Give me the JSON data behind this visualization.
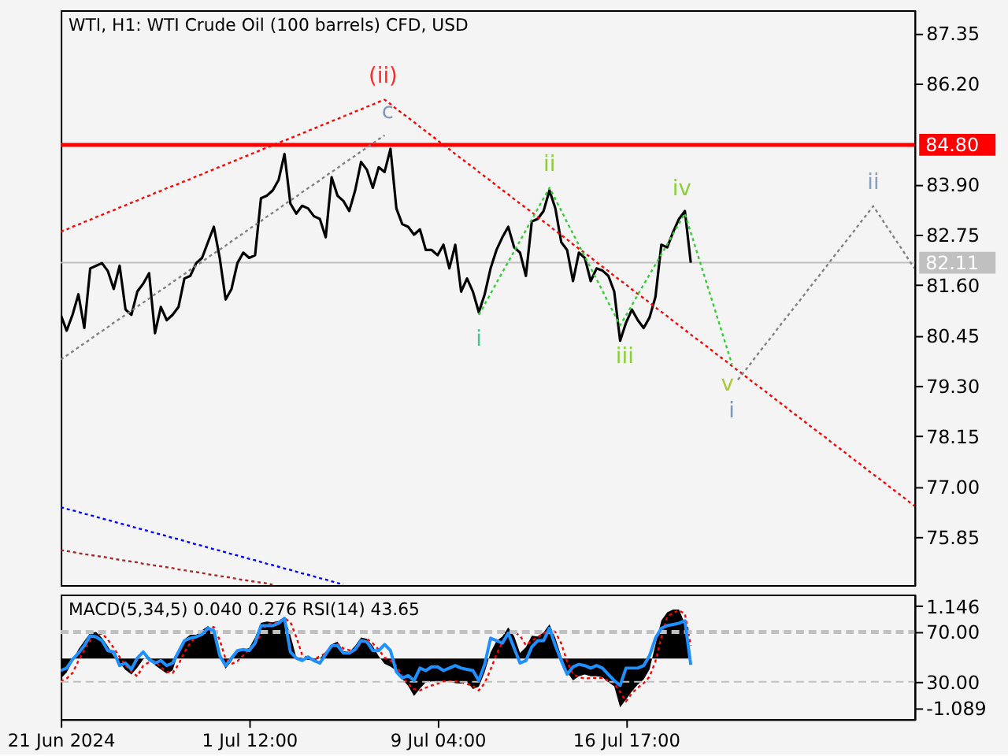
{
  "chart_data": [
    {
      "type": "line",
      "title": "WTI, H1:  WTI Crude Oil (100 barrels) CFD, USD",
      "categories": [
        null,
        null,
        null,
        null,
        null,
        null,
        null,
        null,
        null,
        null,
        null,
        null,
        null,
        null,
        null,
        null,
        null,
        null,
        null,
        null,
        null,
        null,
        null,
        null,
        null,
        null,
        null,
        null,
        null,
        null,
        null,
        null,
        null,
        null,
        null,
        null,
        null,
        null,
        null,
        null,
        null,
        null,
        null,
        null,
        null,
        null,
        null,
        null,
        null,
        null,
        null,
        null,
        null,
        null,
        null,
        null,
        null,
        null,
        null,
        null,
        null,
        null,
        null,
        null,
        null,
        null,
        null,
        null,
        null,
        null,
        null,
        null,
        null,
        null,
        null,
        null,
        null,
        null,
        null,
        null,
        null,
        null,
        null,
        null,
        null,
        null,
        null,
        null,
        null,
        null,
        null,
        null,
        null,
        null,
        null,
        null,
        null,
        null,
        null,
        null,
        null,
        null,
        null,
        null,
        null,
        null,
        null,
        null,
        null,
        null,
        null,
        null,
        null,
        null,
        null,
        null,
        null,
        null,
        null,
        null,
        null,
        null,
        null,
        null,
        null,
        null,
        null,
        null,
        null,
        null,
        null,
        null,
        null,
        null,
        null,
        null,
        null,
        null,
        null,
        null,
        null,
        null,
        null,
        null,
        null,
        null
      ],
      "ylim": [
        74.75,
        87.87
      ],
      "yticks": [
        87.35,
        {
          "value": 86.2,
          "label": "86.20"
        },
        {
          "value": 83.9,
          "label": "83.90"
        },
        82.75,
        {
          "value": 81.6,
          "label": "81.60"
        },
        80.45,
        {
          "value": 79.3,
          "label": "79.30"
        },
        78.15,
        {
          "value": 77,
          "label": "77.00"
        },
        75.85
      ],
      "series": [
        {
          "color": "#000000",
          "values": [
            80.92,
            80.56,
            80.92,
            81.39,
            80.62,
            81.98,
            82.04,
            82.1,
            81.92,
            81.51,
            82.04,
            81.04,
            80.92,
            81.45,
            81.63,
            81.87,
            80.5,
            81.1,
            80.8,
            80.92,
            81.1,
            81.75,
            81.81,
            82.1,
            82.22,
            82.58,
            82.93,
            82.22,
            81.27,
            81.51,
            82.1,
            82.34,
            82.22,
            82.28,
            83.58,
            83.64,
            83.76,
            84.0,
            84.59,
            83.46,
            83.23,
            83.41,
            83.35,
            83.17,
            83.11,
            82.69,
            84.06,
            83.64,
            83.52,
            83.29,
            83.76,
            84.41,
            84.23,
            83.82,
            84.29,
            84.18,
            84.71,
            83.35,
            82.99,
            82.93,
            82.75,
            82.87,
            82.4,
            82.4,
            82.28,
            82.52,
            81.98,
            82.52,
            81.45,
            81.75,
            81.45,
            80.98,
            81.39,
            81.98,
            82.4,
            82.69,
            82.93,
            82.46,
            82.34,
            81.81,
            83.05,
            83.11,
            83.29,
            83.76,
            83.35,
            82.58,
            82.4,
            81.69,
            82.34,
            82.22,
            81.69,
            81.98,
            81.93,
            81.81,
            81.45,
            80.33,
            80.74,
            81.04,
            80.8,
            80.62,
            80.86,
            81.33,
            82.52,
            82.46,
            82.81,
            83.11,
            83.29,
            82.11,
            null,
            null,
            null,
            null,
            null,
            null,
            null,
            null,
            null,
            null,
            null,
            null,
            null,
            null,
            null,
            null,
            null,
            null,
            null,
            null,
            null,
            null,
            null,
            null,
            null,
            null,
            null,
            null,
            null,
            null,
            null,
            null,
            null,
            null,
            null,
            null,
            null,
            null
          ]
        },
        {
          "color": "#ff0000",
          "line_style": "dotted",
          "values": [
            82.82,
            82.87,
            82.93,
            82.98,
            83.04,
            83.09,
            83.15,
            83.2,
            83.26,
            83.31,
            83.37,
            83.42,
            83.48,
            83.53,
            83.59,
            83.64,
            83.7,
            83.75,
            83.81,
            83.86,
            83.91,
            83.97,
            84.02,
            84.08,
            84.13,
            84.19,
            84.24,
            84.3,
            84.35,
            84.41,
            84.46,
            84.52,
            84.57,
            84.63,
            84.68,
            84.74,
            84.79,
            84.85,
            84.9,
            84.95,
            85.01,
            85.06,
            85.12,
            85.17,
            85.23,
            85.28,
            85.34,
            85.39,
            85.45,
            85.5,
            85.56,
            85.61,
            85.67,
            85.72,
            85.78,
            85.83,
            85.73,
            85.62,
            85.52,
            85.42,
            85.32,
            85.21,
            85.11,
            85.01,
            84.9,
            84.8,
            84.7,
            84.59,
            84.49,
            84.39,
            84.29,
            84.18,
            84.08,
            83.98,
            83.87,
            83.77,
            83.67,
            83.56,
            83.46,
            83.36,
            83.26,
            83.15,
            83.05,
            82.95,
            82.84,
            82.74,
            82.64,
            82.53,
            82.43,
            82.33,
            82.23,
            82.12,
            82.02,
            81.92,
            81.81,
            81.71,
            81.61,
            81.5,
            81.4,
            81.3,
            81.2,
            81.09,
            80.99,
            80.89,
            80.78,
            80.68,
            80.58,
            80.47,
            80.37,
            80.27,
            80.17,
            80.06,
            79.96,
            79.86,
            79.75,
            79.65,
            79.55,
            79.44,
            79.34,
            79.24,
            79.14,
            79.03,
            78.93,
            78.83,
            78.72,
            78.62,
            78.52,
            78.41,
            78.31,
            78.21,
            78.11,
            78.0,
            77.9,
            77.8,
            77.69,
            77.59,
            77.49,
            77.38,
            77.28,
            77.18,
            77.08,
            76.97,
            76.87,
            76.77,
            76.66,
            76.56
          ]
        },
        {
          "color": "#808080",
          "line_style": "dotted",
          "values": [
            79.9,
            79.99,
            80.08,
            80.18,
            80.27,
            80.36,
            80.46,
            80.55,
            80.64,
            80.74,
            80.83,
            80.92,
            81.01,
            81.11,
            81.2,
            81.29,
            81.39,
            81.48,
            81.57,
            81.67,
            81.76,
            81.85,
            81.95,
            82.04,
            82.13,
            82.23,
            82.32,
            82.41,
            82.5,
            82.6,
            82.69,
            82.78,
            82.88,
            82.97,
            83.06,
            83.16,
            83.25,
            83.34,
            83.44,
            83.53,
            83.62,
            83.72,
            83.81,
            83.9,
            83.99,
            84.09,
            84.18,
            84.27,
            84.37,
            84.46,
            84.55,
            84.65,
            84.74,
            84.83,
            84.93,
            85.02,
            null,
            null,
            null,
            null,
            null,
            null,
            null,
            null,
            null,
            null,
            null,
            null,
            null,
            null,
            null,
            null,
            null,
            null,
            null,
            null,
            null,
            null,
            null,
            null,
            null,
            null,
            null,
            null,
            null,
            null,
            null,
            null,
            null,
            null,
            null,
            null,
            null,
            null,
            null,
            null,
            null,
            null,
            null,
            null,
            null,
            null,
            null,
            null,
            null,
            null,
            null,
            null,
            null,
            null,
            null,
            null,
            null,
            null,
            null,
            null,
            null,
            null,
            null,
            null,
            null,
            null,
            null,
            null,
            null,
            null,
            null,
            null,
            null,
            null,
            null,
            null,
            null,
            null,
            null,
            null,
            null,
            null,
            null,
            null,
            null,
            null,
            null,
            null,
            null,
            null
          ]
        },
        {
          "color": "#0000ff",
          "line_style": "dotted",
          "values": [
            76.53,
            76.49,
            76.46,
            76.42,
            76.38,
            76.35,
            76.31,
            76.27,
            76.24,
            76.2,
            76.16,
            76.13,
            76.09,
            76.05,
            76.02,
            75.98,
            75.94,
            75.91,
            75.87,
            75.83,
            75.8,
            75.76,
            75.72,
            75.68,
            75.65,
            75.61,
            75.57,
            75.54,
            75.5,
            75.46,
            75.43,
            75.39,
            75.35,
            75.32,
            75.28,
            75.24,
            75.21,
            75.17,
            75.13,
            75.1,
            75.06,
            75.02,
            74.99,
            74.95,
            74.91,
            74.88,
            74.84,
            74.8,
            74.77,
            null,
            null,
            null,
            null,
            null,
            null,
            null,
            null,
            null,
            null,
            null,
            null,
            null,
            null,
            null,
            null,
            null,
            null,
            null,
            null,
            null,
            null,
            null,
            null,
            null,
            null,
            null,
            null,
            null,
            null,
            null,
            null,
            null,
            null,
            null,
            null,
            null,
            null,
            null,
            null,
            null,
            null,
            null,
            null,
            null,
            null,
            null,
            null,
            null,
            null,
            null,
            null,
            null,
            null,
            null,
            null,
            null,
            null,
            null,
            null,
            null,
            null,
            null,
            null,
            null,
            null,
            null,
            null,
            null,
            null,
            null,
            null,
            null,
            null,
            null,
            null,
            null,
            null,
            null,
            null,
            null,
            null,
            null,
            null,
            null,
            null,
            null,
            null,
            null,
            null,
            null,
            null,
            null,
            null,
            null,
            null,
            null
          ]
        },
        {
          "color": "#a52a2a",
          "line_style": "dotted",
          "values": [
            75.55,
            75.53,
            75.51,
            75.48,
            75.46,
            75.44,
            75.42,
            75.4,
            75.38,
            75.35,
            75.33,
            75.31,
            75.29,
            75.27,
            75.24,
            75.22,
            75.2,
            75.18,
            75.16,
            75.14,
            75.11,
            75.09,
            75.07,
            75.05,
            75.03,
            75.0,
            74.98,
            74.96,
            74.94,
            74.92,
            74.89,
            74.87,
            74.85,
            74.83,
            74.81,
            74.79,
            74.76,
            null,
            null,
            null,
            null,
            null,
            null,
            null,
            null,
            null,
            null,
            null,
            null,
            null,
            null,
            null,
            null,
            null,
            null,
            null,
            null,
            null,
            null,
            null,
            null,
            null,
            null,
            null,
            null,
            null,
            null,
            null,
            null,
            null,
            null,
            null,
            null,
            null,
            null,
            null,
            null,
            null,
            null,
            null,
            null,
            null,
            null,
            null,
            null,
            null,
            null,
            null,
            null,
            null,
            null,
            null,
            null,
            null,
            null,
            null,
            null,
            null,
            null,
            null,
            null,
            null,
            null,
            null,
            null,
            null,
            null,
            null,
            null,
            null,
            null,
            null,
            null,
            null,
            null,
            null,
            null,
            null,
            null,
            null,
            null,
            null,
            null,
            null,
            null,
            null,
            null,
            null,
            null,
            null,
            null,
            null,
            null,
            null,
            null,
            null,
            null,
            null,
            null,
            null,
            null,
            null,
            null,
            null,
            null,
            null
          ]
        },
        {
          "color": "#32cd32",
          "line_style": "dotted",
          "values": [
            null,
            null,
            null,
            null,
            null,
            null,
            null,
            null,
            null,
            null,
            null,
            null,
            null,
            null,
            null,
            null,
            null,
            null,
            null,
            null,
            null,
            null,
            null,
            null,
            null,
            null,
            null,
            null,
            null,
            null,
            null,
            null,
            null,
            null,
            null,
            null,
            null,
            null,
            null,
            null,
            null,
            null,
            null,
            null,
            null,
            null,
            null,
            null,
            null,
            null,
            null,
            null,
            null,
            null,
            null,
            null,
            null,
            null,
            null,
            null,
            null,
            null,
            null,
            null,
            null,
            null,
            null,
            null,
            null,
            null,
            null,
            80.92,
            81.16,
            81.4,
            81.65,
            81.89,
            82.13,
            82.37,
            82.61,
            82.85,
            83.1,
            83.34,
            83.58,
            83.82,
            83.56,
            83.3,
            83.03,
            82.77,
            82.51,
            82.25,
            81.99,
            81.73,
            81.47,
            81.2,
            80.94,
            80.68,
            80.91,
            81.14,
            81.38,
            81.61,
            81.84,
            82.07,
            82.3,
            82.53,
            82.77,
            83.0,
            83.23,
            82.8,
            82.37,
            81.94,
            81.51,
            81.08,
            80.65,
            80.22,
            79.79,
            null,
            null,
            null,
            null,
            null,
            null,
            null,
            null,
            null,
            null,
            null,
            null,
            null,
            null,
            null,
            null,
            null,
            null,
            null,
            null,
            null,
            null,
            null,
            null,
            null,
            null,
            null,
            null,
            null,
            null,
            null
          ]
        },
        {
          "color": "#808080",
          "line_style": "dotted",
          "values": [
            null,
            null,
            null,
            null,
            null,
            null,
            null,
            null,
            null,
            null,
            null,
            null,
            null,
            null,
            null,
            null,
            null,
            null,
            null,
            null,
            null,
            null,
            null,
            null,
            null,
            null,
            null,
            null,
            null,
            null,
            null,
            null,
            null,
            null,
            null,
            null,
            null,
            null,
            null,
            null,
            null,
            null,
            null,
            null,
            null,
            null,
            null,
            null,
            null,
            null,
            null,
            null,
            null,
            null,
            null,
            null,
            null,
            null,
            null,
            null,
            null,
            null,
            null,
            null,
            null,
            null,
            null,
            null,
            null,
            null,
            null,
            null,
            null,
            null,
            null,
            null,
            null,
            null,
            null,
            null,
            null,
            null,
            null,
            null,
            null,
            null,
            null,
            null,
            null,
            null,
            null,
            null,
            null,
            null,
            null,
            null,
            null,
            null,
            null,
            null,
            null,
            null,
            null,
            null,
            null,
            null,
            null,
            null,
            null,
            null,
            null,
            null,
            null,
            null,
            null,
            79.44,
            79.61,
            79.78,
            79.96,
            80.13,
            80.3,
            80.47,
            80.65,
            80.82,
            80.99,
            81.16,
            81.33,
            81.51,
            81.68,
            81.85,
            82.02,
            82.2,
            82.37,
            82.54,
            82.71,
            82.88,
            83.06,
            83.23,
            83.4,
            83.2,
            82.99,
            82.79,
            82.59,
            82.39,
            82.18,
            81.98
          ]
        }
      ],
      "ref_lines": [
        {
          "axis": "y",
          "value": 84.8,
          "label": "84.80",
          "color": "#ff0000"
        },
        {
          "axis": "y",
          "value": 82.11,
          "label": "82.11",
          "color": "#c0c0c0"
        }
      ],
      "annotations": [
        {
          "text": "(ii)",
          "y": 85.83
        },
        {
          "text": "c",
          "y": 85.83
        },
        {
          "text": "ii",
          "y": 83.82
        },
        {
          "text": "iv",
          "y": 83.23
        },
        {
          "text": "i",
          "y": 80.92
        },
        {
          "text": "iii",
          "y": 80.68
        },
        {
          "text": "v",
          "y": 79.79
        },
        {
          "text": "i",
          "y": 79.44
        },
        {
          "text": "ii",
          "y": 83.4
        }
      ]
    },
    {
      "type": "line",
      "title": "MACD(5,34,5) 0.040 0.276 RSI(14) 43.65",
      "categories": [
        "21 Jun 2024",
        null,
        null,
        null,
        null,
        null,
        null,
        null,
        null,
        null,
        null,
        null,
        null,
        null,
        null,
        null,
        null,
        null,
        null,
        null,
        null,
        null,
        null,
        null,
        null,
        null,
        null,
        null,
        null,
        null,
        null,
        null,
        "1 Jul 12:00",
        null,
        null,
        null,
        null,
        null,
        null,
        null,
        null,
        null,
        null,
        null,
        null,
        null,
        null,
        null,
        null,
        null,
        null,
        null,
        null,
        null,
        null,
        null,
        null,
        null,
        null,
        null,
        null,
        null,
        null,
        null,
        "9 Jul 04:00",
        null,
        null,
        null,
        null,
        null,
        null,
        null,
        null,
        null,
        null,
        null,
        null,
        null,
        null,
        null,
        null,
        null,
        null,
        null,
        null,
        null,
        null,
        null,
        null,
        null,
        null,
        null,
        null,
        null,
        null,
        null,
        "16 Jul 17:00",
        null,
        null,
        null,
        null,
        null,
        null,
        null,
        null,
        null,
        null,
        null,
        null,
        null,
        null,
        null,
        null,
        null,
        null,
        null,
        null,
        null,
        null,
        null,
        null,
        null,
        null,
        null,
        null,
        null,
        null,
        null,
        null,
        null,
        null,
        null,
        null,
        null,
        null,
        null,
        null,
        null,
        null,
        null,
        null,
        null,
        null,
        null,
        null,
        null
      ],
      "ylim": [
        -1.33,
        1.4
      ],
      "yticks": [
        1.146,
        -1.089
      ],
      "y2lim": [
        0,
        100
      ],
      "y2ticks": [
        {
          "value": 70,
          "label": "70.00"
        },
        {
          "value": 30,
          "label": "30.00"
        }
      ],
      "series": [
        {
          "type": "area",
          "color": "#000000",
          "values": [
            -0.44,
            -0.31,
            -0.06,
            0.2,
            0.38,
            0.56,
            0.58,
            0.45,
            0.27,
            0.05,
            -0.1,
            -0.25,
            -0.35,
            -0.2,
            -0.02,
            0.04,
            -0.15,
            -0.24,
            -0.33,
            -0.26,
            0.14,
            0.42,
            0.52,
            0.52,
            0.62,
            0.71,
            0.57,
            0.02,
            -0.22,
            -0.06,
            0.14,
            0.18,
            0.23,
            0.46,
            0.78,
            0.81,
            0.79,
            0.82,
            0.89,
            0.51,
            0.03,
            0.01,
            -0.03,
            -0.04,
            0.0,
            0.15,
            0.31,
            0.37,
            0.16,
            0.14,
            0.28,
            0.46,
            0.43,
            0.27,
            0.05,
            -0.12,
            -0.18,
            -0.27,
            -0.45,
            -0.6,
            -0.82,
            -0.66,
            -0.52,
            -0.5,
            -0.5,
            -0.5,
            -0.5,
            -0.54,
            -0.55,
            -0.51,
            -0.67,
            -0.62,
            -0.3,
            0.13,
            0.38,
            0.48,
            0.68,
            0.49,
            0.12,
            0.25,
            0.5,
            0.48,
            0.57,
            0.75,
            0.45,
            0.05,
            -0.3,
            -0.48,
            -0.39,
            -0.35,
            -0.39,
            -0.39,
            -0.41,
            -0.52,
            -0.61,
            -1.07,
            -0.9,
            -0.72,
            -0.57,
            -0.46,
            -0.24,
            0.31,
            0.83,
            1.01,
            1.07,
            1.07,
            0.76,
            0.04,
            null,
            null,
            null,
            null,
            null,
            null,
            null,
            null,
            null,
            null,
            null,
            null,
            null,
            null,
            null,
            null,
            null,
            null,
            null,
            null,
            null,
            null,
            null,
            null,
            null,
            null,
            null,
            null,
            null,
            null,
            null,
            null,
            null,
            null,
            null,
            null,
            null,
            null
          ]
        },
        {
          "color": "#ff0000",
          "line_style": "dotted",
          "values": [
            -0.5,
            -0.44,
            -0.32,
            -0.05,
            0.19,
            0.4,
            0.5,
            0.55,
            0.41,
            0.23,
            0.03,
            -0.15,
            -0.29,
            -0.39,
            -0.16,
            -0.08,
            -0.06,
            -0.19,
            -0.29,
            -0.32,
            -0.13,
            0.14,
            0.34,
            0.49,
            0.56,
            0.64,
            0.69,
            0.4,
            -0.01,
            -0.12,
            -0.06,
            0.07,
            0.2,
            0.31,
            0.53,
            0.76,
            0.77,
            0.81,
            0.88,
            0.8,
            0.47,
            0.08,
            0.0,
            -0.02,
            0.05,
            0.11,
            0.25,
            0.32,
            0.22,
            0.18,
            0.18,
            0.33,
            0.43,
            0.33,
            0.19,
            0.02,
            -0.05,
            -0.16,
            -0.4,
            -0.56,
            -0.67,
            -0.7,
            -0.64,
            -0.59,
            -0.55,
            -0.5,
            -0.5,
            -0.5,
            -0.52,
            -0.56,
            -0.6,
            -0.7,
            -0.54,
            -0.24,
            0.09,
            0.36,
            0.58,
            0.58,
            0.5,
            0.29,
            0.39,
            0.47,
            0.54,
            0.65,
            0.58,
            0.33,
            -0.07,
            -0.34,
            -0.41,
            -0.44,
            -0.43,
            -0.43,
            -0.43,
            -0.49,
            -0.54,
            -0.73,
            -0.94,
            -0.76,
            -0.64,
            -0.54,
            -0.4,
            -0.06,
            0.47,
            0.92,
            1.0,
            1.05,
            0.98,
            0.276,
            null,
            null,
            null,
            null,
            null,
            null,
            null,
            null,
            null,
            null,
            null,
            null,
            null,
            null,
            null,
            null,
            null,
            null,
            null,
            null,
            null,
            null,
            null,
            null,
            null,
            null,
            null,
            null,
            null,
            null,
            null,
            null,
            null,
            null,
            null,
            null,
            null,
            null
          ]
        },
        {
          "color": "#1e90ff",
          "axis": "y2",
          "values": [
            39,
            41,
            48,
            53,
            59,
            67,
            66,
            63,
            55,
            54,
            43,
            45,
            40,
            49,
            54,
            48,
            45,
            47,
            43,
            45,
            54,
            63,
            65,
            66,
            68,
            73,
            71,
            51,
            43,
            49,
            55,
            56,
            55,
            61,
            75,
            75,
            75,
            77,
            81,
            54,
            49,
            47,
            50,
            47,
            45,
            52,
            59,
            59,
            53,
            53,
            56,
            63,
            62,
            55,
            55,
            60,
            55,
            38,
            33,
            35,
            31,
            41,
            39,
            42,
            42,
            39,
            41,
            43,
            41,
            40,
            39,
            31,
            44,
            65,
            63,
            61,
            69,
            57,
            45,
            47,
            58,
            63,
            63,
            73,
            59,
            47,
            36,
            42,
            44,
            43,
            41,
            43,
            41,
            36,
            31,
            27,
            41,
            41,
            41,
            43,
            51,
            65,
            73,
            75,
            76,
            77,
            79,
            43.65,
            null,
            null,
            null,
            null,
            null,
            null,
            null,
            null,
            null,
            null,
            null,
            null,
            null,
            null,
            null,
            null,
            null,
            null,
            null,
            null,
            null,
            null,
            null,
            null,
            null,
            null,
            null,
            null,
            null,
            null,
            null,
            null,
            null,
            null,
            null,
            null,
            null,
            null
          ]
        }
      ],
      "ref_lines": [
        {
          "axis": "y2",
          "value": 70,
          "color": "#c0c0c0",
          "line_style": "dashed"
        },
        {
          "axis": "y2",
          "value": 30,
          "color": "#c0c0c0",
          "line_style": "dashed"
        }
      ]
    }
  ]
}
